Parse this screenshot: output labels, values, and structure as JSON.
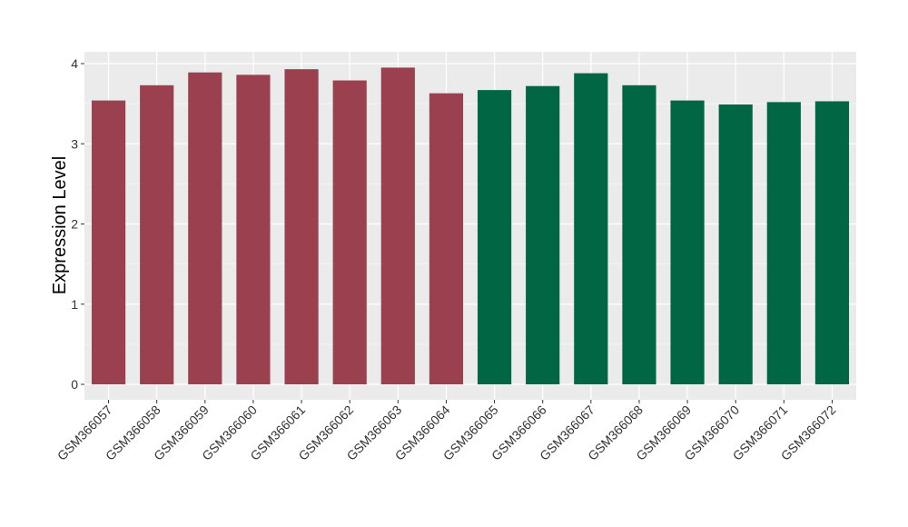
{
  "chart_data": {
    "type": "bar",
    "title": "",
    "xlabel": "",
    "ylabel": "Expression Level",
    "ylim": [
      0,
      4.2
    ],
    "yticks": [
      0,
      1,
      2,
      3,
      4
    ],
    "grid": true,
    "categories": [
      "GSM366057",
      "GSM366058",
      "GSM366059",
      "GSM366060",
      "GSM366061",
      "GSM366062",
      "GSM366063",
      "GSM366064",
      "GSM366065",
      "GSM366066",
      "GSM366067",
      "GSM366068",
      "GSM366069",
      "GSM366070",
      "GSM366071",
      "GSM366072"
    ],
    "values": [
      3.54,
      3.73,
      3.89,
      3.86,
      3.93,
      3.79,
      3.95,
      3.63,
      3.67,
      3.72,
      3.88,
      3.73,
      3.54,
      3.49,
      3.52,
      3.53
    ],
    "colors": [
      "#9a404e",
      "#9a404e",
      "#9a404e",
      "#9a404e",
      "#9a404e",
      "#9a404e",
      "#9a404e",
      "#9a404e",
      "#006644",
      "#006644",
      "#006644",
      "#006644",
      "#006644",
      "#006644",
      "#006644",
      "#006644"
    ],
    "panel_background": "#ebebeb",
    "gridline_color": "#ffffff"
  }
}
